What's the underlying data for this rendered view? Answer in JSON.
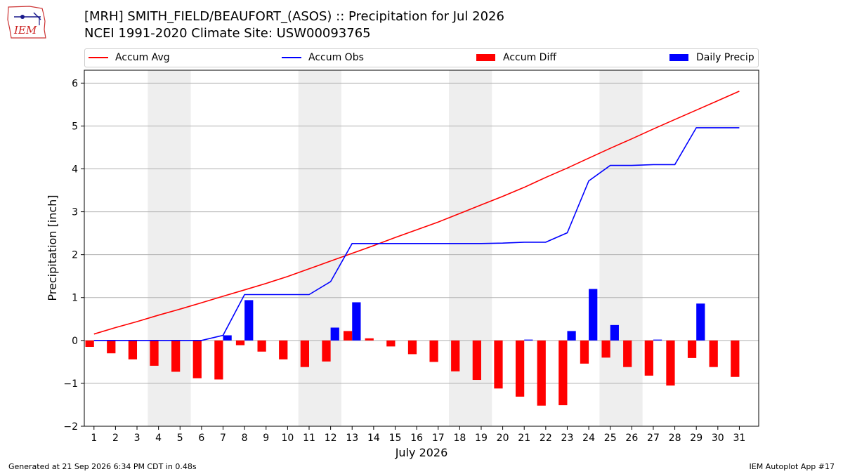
{
  "header": {
    "logo_text": "IEM",
    "title_line1": "[MRH] SMITH_FIELD/BEAUFORT_(ASOS) :: Precipitation for Jul 2026",
    "title_line2": "NCEI 1991-2020 Climate Site: USW00093765"
  },
  "footer": {
    "left": "Generated at 21 Sep 2026 6:34 PM CDT in 0.48s",
    "right": "IEM Autoplot App #17"
  },
  "colors": {
    "accum_avg": "#ff0000",
    "accum_obs": "#0000ff",
    "accum_diff": "#ff0000",
    "daily_precip": "#0000ff",
    "weekend_shade": "#eeeeee",
    "grid": "#b0b0b0"
  },
  "chart_data": {
    "type": "bar",
    "xlabel": "July 2026",
    "ylabel": "Precipitation [inch]",
    "ylim": [
      -2,
      6.3
    ],
    "yticks": [
      -2,
      -1,
      0,
      1,
      2,
      3,
      4,
      5,
      6
    ],
    "ytick_labels": [
      "−2",
      "−1",
      "0",
      "1",
      "2",
      "3",
      "4",
      "5",
      "6"
    ],
    "grid": "horizontal",
    "legend_placement": "top",
    "categories": [
      "1",
      "2",
      "3",
      "4",
      "5",
      "6",
      "7",
      "8",
      "9",
      "10",
      "11",
      "12",
      "13",
      "14",
      "15",
      "16",
      "17",
      "18",
      "19",
      "20",
      "21",
      "22",
      "23",
      "24",
      "25",
      "26",
      "27",
      "28",
      "29",
      "30",
      "31"
    ],
    "weekend_shading": [
      [
        4,
        5
      ],
      [
        11,
        12
      ],
      [
        18,
        19
      ],
      [
        25,
        26
      ]
    ],
    "series": [
      {
        "name": "Accum Avg",
        "kind": "line",
        "values": [
          0.15,
          0.3,
          0.44,
          0.59,
          0.73,
          0.88,
          1.03,
          1.18,
          1.33,
          1.49,
          1.67,
          1.85,
          2.03,
          2.21,
          2.4,
          2.58,
          2.76,
          2.96,
          3.16,
          3.36,
          3.57,
          3.8,
          4.02,
          4.25,
          4.48,
          4.7,
          4.93,
          5.15,
          5.37,
          5.59,
          5.81
        ]
      },
      {
        "name": "Accum Obs",
        "kind": "line",
        "values": [
          0,
          0,
          0,
          0,
          0,
          0,
          0.12,
          1.07,
          1.07,
          1.07,
          1.07,
          1.37,
          2.26,
          2.26,
          2.26,
          2.26,
          2.26,
          2.26,
          2.26,
          2.27,
          2.29,
          2.29,
          2.51,
          3.72,
          4.08,
          4.08,
          4.1,
          4.1,
          4.96,
          4.96,
          4.96
        ]
      },
      {
        "name": "Accum Diff",
        "kind": "bar",
        "values": [
          -0.15,
          -0.3,
          -0.44,
          -0.59,
          -0.73,
          -0.88,
          -0.91,
          -0.11,
          -0.26,
          -0.44,
          -0.62,
          -0.49,
          0.22,
          0.05,
          -0.14,
          -0.32,
          -0.5,
          -0.72,
          -0.92,
          -1.12,
          -1.31,
          -1.52,
          -1.51,
          -0.54,
          -0.4,
          -0.62,
          -0.82,
          -1.05,
          -0.41,
          -0.62,
          -0.85
        ]
      },
      {
        "name": "Daily Precip",
        "kind": "bar",
        "values": [
          0,
          0,
          0,
          0,
          0,
          0,
          0.12,
          0.94,
          0,
          0,
          0,
          0.3,
          0.89,
          0,
          0,
          0,
          0,
          0,
          0,
          0,
          0.02,
          0,
          0.22,
          1.2,
          0.36,
          0,
          0.02,
          0,
          0.86,
          0,
          0
        ]
      }
    ]
  }
}
